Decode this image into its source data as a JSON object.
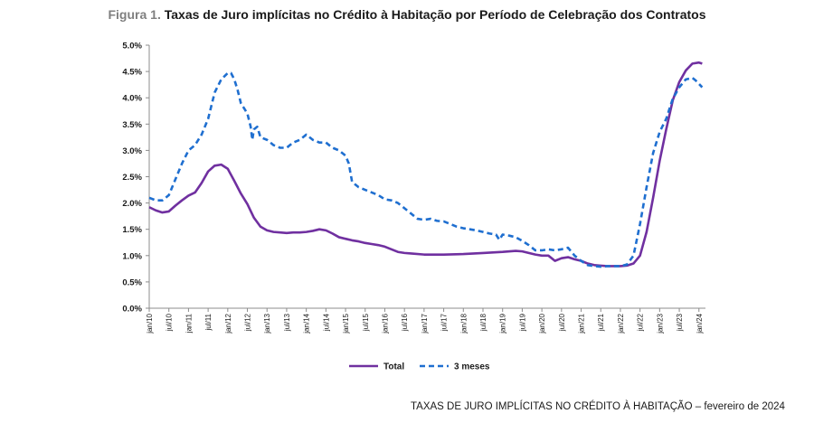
{
  "header": {
    "prefix": "Figura 1.",
    "title": "Taxas de Juro implícitas no Crédito à Habitação por Período de Celebração dos Contratos"
  },
  "footer": {
    "text": "TAXAS DE JURO IMPLÍCITAS NO CRÉDITO À HABITAÇÃO – fevereiro de 2024"
  },
  "chart_data": {
    "type": "line",
    "xlabel": "",
    "ylabel": "",
    "ylim": [
      0,
      5.0
    ],
    "yticks": [
      0,
      0.5,
      1.0,
      1.5,
      2.0,
      2.5,
      3.0,
      3.5,
      4.0,
      4.5,
      5.0
    ],
    "ytick_labels": [
      "0.0%",
      "0.5%",
      "1.0%",
      "1.5%",
      "2.0%",
      "2.5%",
      "3.0%",
      "3.5%",
      "4.0%",
      "4.5%",
      "5.0%"
    ],
    "x_ticks": [
      {
        "label": "jan/10",
        "m": 0
      },
      {
        "label": "jul/10",
        "m": 6
      },
      {
        "label": "jan/11",
        "m": 12
      },
      {
        "label": "jul/11",
        "m": 18
      },
      {
        "label": "jan/12",
        "m": 24
      },
      {
        "label": "jul/12",
        "m": 30
      },
      {
        "label": "jan/13",
        "m": 36
      },
      {
        "label": "jul/13",
        "m": 42
      },
      {
        "label": "jan/14",
        "m": 48
      },
      {
        "label": "jul/14",
        "m": 54
      },
      {
        "label": "jan/15",
        "m": 60
      },
      {
        "label": "jul/15",
        "m": 66
      },
      {
        "label": "jan/16",
        "m": 72
      },
      {
        "label": "jul/16",
        "m": 78
      },
      {
        "label": "jan/17",
        "m": 84
      },
      {
        "label": "jul/17",
        "m": 90
      },
      {
        "label": "jan/18",
        "m": 96
      },
      {
        "label": "jul/18",
        "m": 102
      },
      {
        "label": "jan/19",
        "m": 108
      },
      {
        "label": "jul/19",
        "m": 114
      },
      {
        "label": "jan/20",
        "m": 120
      },
      {
        "label": "jul/20",
        "m": 126
      },
      {
        "label": "jan/21",
        "m": 132
      },
      {
        "label": "jul/21",
        "m": 138
      },
      {
        "label": "jan/22",
        "m": 144
      },
      {
        "label": "jul/22",
        "m": 150
      },
      {
        "label": "jan/23",
        "m": 156
      },
      {
        "label": "jul/23",
        "m": 162
      },
      {
        "label": "jan/24",
        "m": 168
      }
    ],
    "x_max": 170,
    "grid": false,
    "legend_position": "bottom-center",
    "series": [
      {
        "name": "Total",
        "color": "#7030a0",
        "style": "solid",
        "points": [
          [
            0,
            1.92
          ],
          [
            2,
            1.86
          ],
          [
            4,
            1.82
          ],
          [
            6,
            1.84
          ],
          [
            8,
            1.95
          ],
          [
            10,
            2.05
          ],
          [
            12,
            2.14
          ],
          [
            14,
            2.2
          ],
          [
            16,
            2.38
          ],
          [
            18,
            2.6
          ],
          [
            20,
            2.71
          ],
          [
            22,
            2.73
          ],
          [
            24,
            2.65
          ],
          [
            26,
            2.42
          ],
          [
            28,
            2.18
          ],
          [
            30,
            1.98
          ],
          [
            32,
            1.72
          ],
          [
            34,
            1.55
          ],
          [
            36,
            1.48
          ],
          [
            38,
            1.45
          ],
          [
            40,
            1.44
          ],
          [
            42,
            1.43
          ],
          [
            44,
            1.44
          ],
          [
            46,
            1.44
          ],
          [
            48,
            1.45
          ],
          [
            50,
            1.47
          ],
          [
            52,
            1.5
          ],
          [
            54,
            1.48
          ],
          [
            56,
            1.42
          ],
          [
            58,
            1.35
          ],
          [
            60,
            1.32
          ],
          [
            62,
            1.29
          ],
          [
            64,
            1.27
          ],
          [
            66,
            1.24
          ],
          [
            68,
            1.22
          ],
          [
            70,
            1.2
          ],
          [
            72,
            1.17
          ],
          [
            74,
            1.12
          ],
          [
            76,
            1.07
          ],
          [
            78,
            1.05
          ],
          [
            80,
            1.04
          ],
          [
            84,
            1.02
          ],
          [
            90,
            1.02
          ],
          [
            96,
            1.03
          ],
          [
            102,
            1.05
          ],
          [
            108,
            1.07
          ],
          [
            112,
            1.09
          ],
          [
            114,
            1.08
          ],
          [
            116,
            1.05
          ],
          [
            118,
            1.02
          ],
          [
            120,
            1.0
          ],
          [
            122,
            1.0
          ],
          [
            124,
            0.9
          ],
          [
            126,
            0.95
          ],
          [
            128,
            0.97
          ],
          [
            130,
            0.93
          ],
          [
            132,
            0.9
          ],
          [
            134,
            0.85
          ],
          [
            136,
            0.82
          ],
          [
            138,
            0.81
          ],
          [
            140,
            0.8
          ],
          [
            142,
            0.8
          ],
          [
            144,
            0.8
          ],
          [
            146,
            0.81
          ],
          [
            148,
            0.85
          ],
          [
            150,
            1.0
          ],
          [
            152,
            1.45
          ],
          [
            154,
            2.1
          ],
          [
            156,
            2.8
          ],
          [
            158,
            3.4
          ],
          [
            160,
            3.95
          ],
          [
            162,
            4.3
          ],
          [
            164,
            4.52
          ],
          [
            166,
            4.65
          ],
          [
            168,
            4.67
          ],
          [
            169,
            4.65
          ]
        ]
      },
      {
        "name": "3 meses",
        "color": "#1f6fd0",
        "style": "dashed",
        "points": [
          [
            0,
            2.1
          ],
          [
            2,
            2.05
          ],
          [
            4,
            2.05
          ],
          [
            6,
            2.15
          ],
          [
            8,
            2.45
          ],
          [
            10,
            2.75
          ],
          [
            12,
            3.0
          ],
          [
            14,
            3.1
          ],
          [
            16,
            3.3
          ],
          [
            18,
            3.6
          ],
          [
            20,
            4.1
          ],
          [
            22,
            4.35
          ],
          [
            24,
            4.47
          ],
          [
            25,
            4.47
          ],
          [
            26,
            4.35
          ],
          [
            27,
            4.15
          ],
          [
            28,
            3.9
          ],
          [
            30,
            3.7
          ],
          [
            31,
            3.45
          ],
          [
            31.5,
            3.2
          ],
          [
            32,
            3.4
          ],
          [
            33,
            3.45
          ],
          [
            34,
            3.25
          ],
          [
            36,
            3.2
          ],
          [
            38,
            3.1
          ],
          [
            40,
            3.05
          ],
          [
            42,
            3.05
          ],
          [
            44,
            3.15
          ],
          [
            46,
            3.2
          ],
          [
            48,
            3.3
          ],
          [
            50,
            3.2
          ],
          [
            52,
            3.15
          ],
          [
            54,
            3.15
          ],
          [
            56,
            3.05
          ],
          [
            58,
            3.0
          ],
          [
            60,
            2.9
          ],
          [
            61,
            2.75
          ],
          [
            62,
            2.4
          ],
          [
            64,
            2.3
          ],
          [
            66,
            2.25
          ],
          [
            68,
            2.2
          ],
          [
            70,
            2.15
          ],
          [
            72,
            2.07
          ],
          [
            74,
            2.05
          ],
          [
            76,
            2.0
          ],
          [
            78,
            1.9
          ],
          [
            80,
            1.8
          ],
          [
            82,
            1.7
          ],
          [
            84,
            1.68
          ],
          [
            86,
            1.7
          ],
          [
            88,
            1.66
          ],
          [
            90,
            1.65
          ],
          [
            92,
            1.6
          ],
          [
            94,
            1.55
          ],
          [
            96,
            1.52
          ],
          [
            98,
            1.5
          ],
          [
            100,
            1.48
          ],
          [
            102,
            1.45
          ],
          [
            104,
            1.42
          ],
          [
            106,
            1.4
          ],
          [
            107,
            1.3
          ],
          [
            108,
            1.4
          ],
          [
            110,
            1.38
          ],
          [
            112,
            1.35
          ],
          [
            114,
            1.28
          ],
          [
            116,
            1.2
          ],
          [
            118,
            1.1
          ],
          [
            120,
            1.1
          ],
          [
            122,
            1.12
          ],
          [
            124,
            1.1
          ],
          [
            126,
            1.12
          ],
          [
            128,
            1.15
          ],
          [
            130,
            1.0
          ],
          [
            132,
            0.9
          ],
          [
            134,
            0.82
          ],
          [
            136,
            0.8
          ],
          [
            138,
            0.79
          ],
          [
            140,
            0.8
          ],
          [
            142,
            0.8
          ],
          [
            144,
            0.8
          ],
          [
            146,
            0.83
          ],
          [
            148,
            1.0
          ],
          [
            150,
            1.6
          ],
          [
            152,
            2.3
          ],
          [
            154,
            2.95
          ],
          [
            156,
            3.35
          ],
          [
            158,
            3.6
          ],
          [
            160,
            3.98
          ],
          [
            162,
            4.2
          ],
          [
            164,
            4.35
          ],
          [
            166,
            4.38
          ],
          [
            167,
            4.33
          ],
          [
            169,
            4.2
          ]
        ]
      }
    ]
  }
}
